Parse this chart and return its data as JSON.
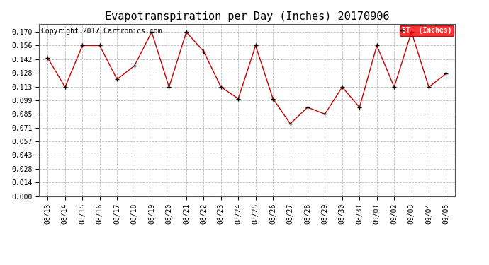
{
  "title": "Evapotranspiration per Day (Inches) 20170906",
  "copyright_text": "Copyright 2017 Cartronics.com",
  "legend_label": "ET  (Inches)",
  "dates": [
    "08/13",
    "08/14",
    "08/15",
    "08/16",
    "08/17",
    "08/18",
    "08/19",
    "08/20",
    "08/21",
    "08/22",
    "08/23",
    "08/24",
    "08/25",
    "08/26",
    "08/27",
    "08/28",
    "08/29",
    "08/30",
    "08/31",
    "09/01",
    "09/02",
    "09/03",
    "09/04",
    "09/05"
  ],
  "values": [
    0.143,
    0.113,
    0.156,
    0.156,
    0.121,
    0.135,
    0.17,
    0.113,
    0.17,
    0.15,
    0.113,
    0.101,
    0.156,
    0.101,
    0.075,
    0.092,
    0.085,
    0.113,
    0.092,
    0.156,
    0.113,
    0.17,
    0.113,
    0.127
  ],
  "ylim": [
    0.0,
    0.1785
  ],
  "yticks": [
    0.0,
    0.014,
    0.028,
    0.043,
    0.057,
    0.071,
    0.085,
    0.099,
    0.113,
    0.128,
    0.142,
    0.156,
    0.17
  ],
  "line_color": "#cc0000",
  "marker_color": "#000000",
  "background_color": "#ffffff",
  "grid_color": "#bbbbbb",
  "title_fontsize": 11,
  "copyright_fontsize": 7,
  "tick_fontsize": 7,
  "legend_fontsize": 7
}
